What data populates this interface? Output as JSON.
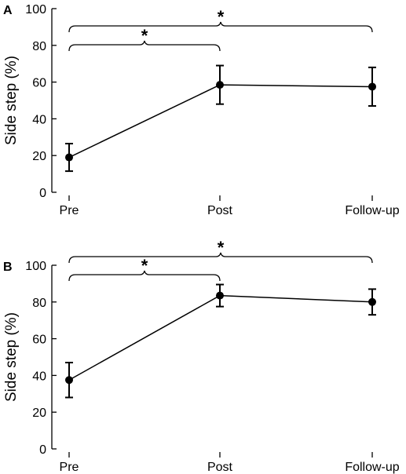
{
  "chart_data": [
    {
      "type": "line",
      "panel": "A",
      "ylabel": "Side step (%)",
      "xlabel": "",
      "ylim": [
        0,
        100
      ],
      "yticks": [
        "0",
        "20",
        "40",
        "60",
        "80",
        "100"
      ],
      "categories": [
        "Pre",
        "Post",
        "Follow-up"
      ],
      "series": [
        {
          "values": [
            19,
            58.5,
            57.5
          ],
          "error": [
            7.5,
            10.5,
            10.5
          ]
        }
      ],
      "annotations": [
        {
          "label": "*",
          "from": "Pre",
          "to": "Post"
        },
        {
          "label": "*",
          "from": "Pre",
          "to": "Follow-up"
        }
      ]
    },
    {
      "type": "line",
      "panel": "B",
      "ylabel": "Side step (%)",
      "xlabel": "",
      "ylim": [
        0,
        100
      ],
      "yticks": [
        "0",
        "20",
        "40",
        "60",
        "80",
        "100"
      ],
      "categories": [
        "Pre",
        "Post",
        "Follow-up"
      ],
      "series": [
        {
          "values": [
            37.5,
            83.5,
            80
          ],
          "error": [
            9.5,
            6,
            7
          ]
        }
      ],
      "annotations": [
        {
          "label": "*",
          "from": "Pre",
          "to": "Post"
        },
        {
          "label": "*",
          "from": "Pre",
          "to": "Follow-up"
        }
      ]
    }
  ]
}
